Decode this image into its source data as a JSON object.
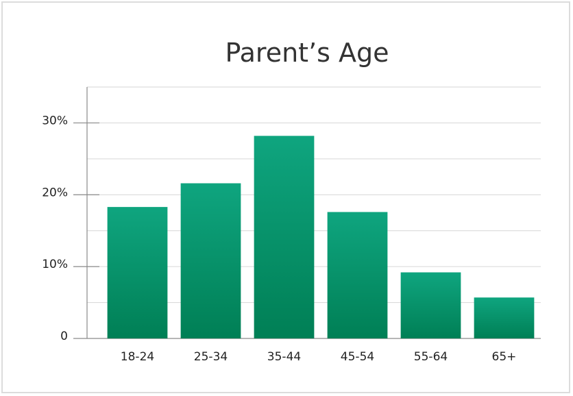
{
  "colors": {
    "bar_top": "#0fa57f",
    "bar_bottom": "#007f55",
    "axis": "#8a8a8a",
    "grid": "#d6d6d6",
    "frame_border": "#dcdcdc",
    "text": "#222222"
  },
  "chart_data": {
    "type": "bar",
    "title": "Parent’s Age",
    "xlabel": "",
    "ylabel": "",
    "categories": [
      "18-24",
      "25-34",
      "35-44",
      "45-54",
      "55-64",
      "65+"
    ],
    "values": [
      18.3,
      21.6,
      28.2,
      17.6,
      9.2,
      5.7
    ],
    "ylim": [
      0,
      35
    ],
    "yticks": [
      0,
      10,
      20,
      30
    ],
    "ytick_labels": [
      "0",
      "10%",
      "20%",
      "30%"
    ],
    "minor_gridlines": [
      5,
      15,
      25,
      35
    ],
    "grid": true,
    "legend": "none"
  }
}
